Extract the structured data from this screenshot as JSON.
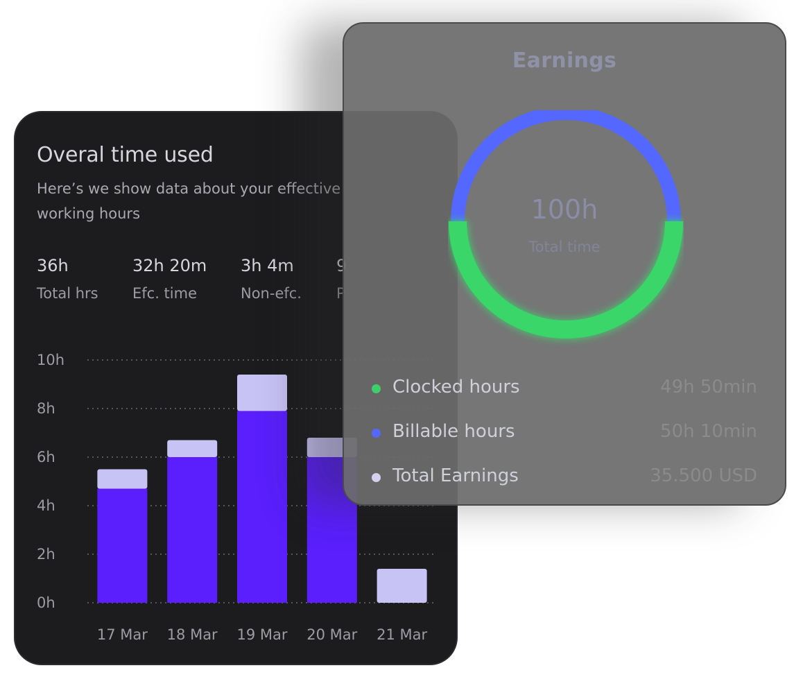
{
  "time_card": {
    "title": "Overal time used",
    "subtitle": "Here’s we show data about your effective working hours",
    "stats": [
      {
        "value": "36h",
        "label": "Total hrs"
      },
      {
        "value": "32h 20m",
        "label": "Efc. time"
      },
      {
        "value": "3h 4m",
        "label": "Non-efc."
      },
      {
        "value": "9",
        "label": "P"
      }
    ]
  },
  "earnings_card": {
    "title": "Earnings",
    "center_value": "100h",
    "center_label": "Total time",
    "legend": [
      {
        "label": "Clocked hours",
        "value": "49h 50min",
        "color": "#3fcf6a"
      },
      {
        "label": "Billable hours",
        "value": "50h 10min",
        "color": "#5468ff"
      },
      {
        "label": "Total Earnings",
        "value": "35.500 USD",
        "color": "#d4d0ee"
      }
    ],
    "ring_colors": {
      "top": "#5468ff",
      "bottom": "#3ad66a"
    }
  },
  "chart_data": {
    "type": "bar",
    "stacked": true,
    "categories": [
      "17 Mar",
      "18 Mar",
      "19 Mar",
      "20 Mar",
      "21 Mar"
    ],
    "series": [
      {
        "values": [
          4.7,
          6.0,
          7.9,
          6.0,
          0
        ],
        "color": "#5a1ffc"
      },
      {
        "values": [
          0.8,
          0.7,
          1.5,
          0.8,
          1.4
        ],
        "color": "#c8c3f5"
      }
    ],
    "y_ticks": [
      "0h",
      "2h",
      "4h",
      "6h",
      "8h",
      "10h"
    ],
    "ylim": [
      0,
      10
    ],
    "grid": "dotted"
  }
}
